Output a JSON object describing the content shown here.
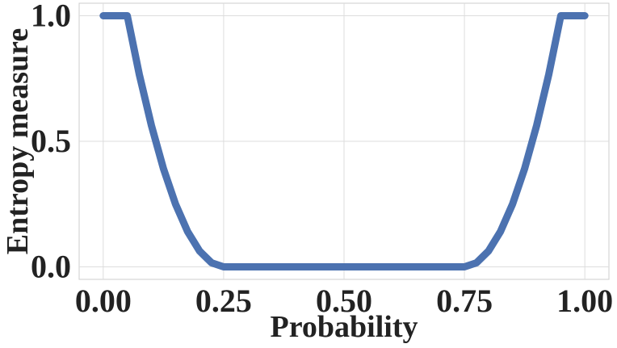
{
  "chart_data": {
    "type": "line",
    "title": "",
    "xlabel": "Probability",
    "ylabel": "Entropy measure",
    "xlim": [
      -0.05,
      1.05
    ],
    "ylim": [
      -0.05,
      1.05
    ],
    "xticks": [
      0.0,
      0.25,
      0.5,
      0.75,
      1.0
    ],
    "xtick_labels": [
      "0.00",
      "0.25",
      "0.50",
      "0.75",
      "1.00"
    ],
    "yticks": [
      0.0,
      0.5,
      1.0
    ],
    "ytick_labels": [
      "0.0",
      "0.5",
      "1.0"
    ],
    "grid": true,
    "legend": "none",
    "series": [
      {
        "color": "#4c72b0",
        "x": [
          0.0,
          0.05,
          0.075,
          0.1,
          0.125,
          0.15,
          0.175,
          0.2,
          0.225,
          0.25,
          0.5,
          0.75,
          0.775,
          0.8,
          0.825,
          0.85,
          0.875,
          0.9,
          0.925,
          0.95,
          1.0
        ],
        "y": [
          1.0,
          1.0,
          0.766,
          0.563,
          0.391,
          0.25,
          0.141,
          0.063,
          0.016,
          0.0,
          0.0,
          0.0,
          0.016,
          0.063,
          0.141,
          0.25,
          0.391,
          0.563,
          0.766,
          1.0,
          1.0
        ]
      }
    ]
  }
}
